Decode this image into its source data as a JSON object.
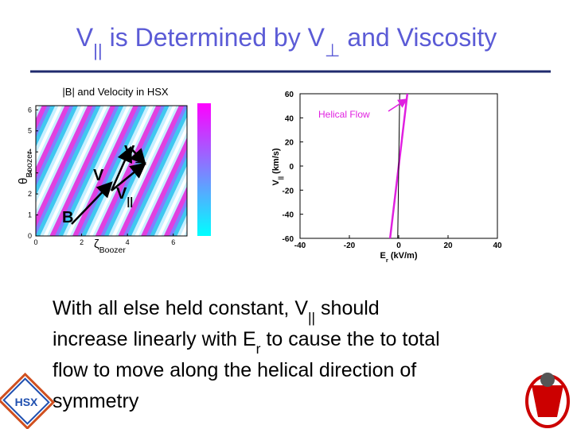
{
  "title": [
    {
      "text": "V"
    },
    {
      "text": "||",
      "sub": true
    },
    {
      "text": " is Determined by "
    },
    {
      "text": "V"
    },
    {
      "text": "⊥",
      "sub": true
    },
    {
      "text": " and Viscosity"
    }
  ],
  "left_plot": {
    "title": "|B| and Velocity in HSX",
    "xlabel": [
      {
        "text": "ζ"
      },
      {
        "text": "Boozer",
        "sub": true
      }
    ],
    "ylabel": [
      {
        "text": "θ"
      },
      {
        "text": "Boozer",
        "sub": true
      }
    ],
    "xlim": [
      0,
      6.6
    ],
    "ylim": [
      0,
      6.2
    ],
    "xticks": [
      0,
      2,
      4,
      6
    ],
    "yticks": [
      0,
      1,
      2,
      3,
      4,
      5,
      6
    ],
    "vectors": {
      "v_perp": [
        {
          "text": "V"
        },
        {
          "text": "⊥",
          "sub": true
        }
      ],
      "v": [
        {
          "text": "V"
        }
      ],
      "v_par": [
        {
          "text": "V"
        },
        {
          "text": "||",
          "sub": true
        }
      ],
      "b": [
        {
          "text": "B"
        }
      ]
    }
  },
  "chart_data": {
    "type": "line",
    "xlabel": [
      {
        "text": "E"
      },
      {
        "text": "r",
        "sub": true
      },
      {
        "text": " (kV/m)"
      }
    ],
    "ylabel": [
      {
        "text": "V"
      },
      {
        "text": "||",
        "sub": true
      },
      {
        "text": " (km/s)"
      }
    ],
    "xlim": [
      -40,
      40
    ],
    "ylim": [
      -60,
      60
    ],
    "xticks": [
      -40,
      -20,
      0,
      20,
      40
    ],
    "yticks": [
      -60,
      -40,
      -20,
      0,
      20,
      40,
      60
    ],
    "series": [
      {
        "color": "#e020e0",
        "x": [
          -3.5,
          3.5
        ],
        "values": [
          -60,
          60
        ]
      },
      {
        "color": "#000000",
        "x": [
          -0.4,
          0.4
        ],
        "values": [
          -60,
          60
        ]
      }
    ],
    "annotation": "Helical Flow"
  },
  "body": [
    [
      {
        "text": "With all else held constant, V"
      },
      {
        "text": "||",
        "sub": true
      },
      {
        "text": " should"
      }
    ],
    [
      {
        "text": "increase linearly with E"
      },
      {
        "text": "r",
        "sub": true
      },
      {
        "text": " to cause the to total"
      }
    ],
    [
      {
        "text": "flow to move along the helical direction of"
      }
    ],
    [
      {
        "text": "symmetry"
      }
    ]
  ],
  "logo": "HSX"
}
